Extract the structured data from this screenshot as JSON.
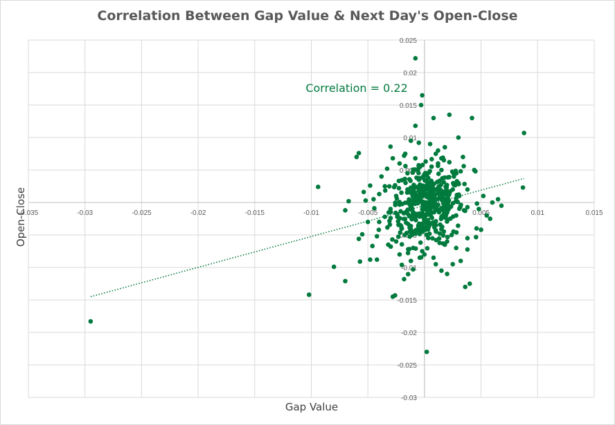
{
  "chart_data": {
    "type": "scatter",
    "title": "Correlation Between Gap Value & Next Day's Open-Close",
    "xlabel": "Gap Value",
    "ylabel": "Open-Close",
    "xlim": [
      -0.035,
      0.015
    ],
    "ylim": [
      -0.03,
      0.025
    ],
    "x_ticks": [
      -0.035,
      -0.03,
      -0.025,
      -0.02,
      -0.015,
      -0.01,
      -0.005,
      0,
      0.005,
      0.01,
      0.015
    ],
    "y_ticks": [
      -0.03,
      -0.025,
      -0.02,
      -0.015,
      -0.01,
      -0.005,
      0,
      0.005,
      0.01,
      0.015,
      0.02,
      0.025
    ],
    "x_tick_labels": [
      "-0.035",
      "-0.03",
      "-0.025",
      "-0.02",
      "-0.015",
      "-0.01",
      "-0.005",
      "0",
      "0.005",
      "0.01",
      "0.015"
    ],
    "y_tick_labels": [
      "-0.03",
      "-0.025",
      "-0.02",
      "-0.015",
      "-0.01",
      "-0.005",
      "0",
      "0.005",
      "0.01",
      "0.015",
      "0.02",
      "0.025"
    ],
    "grid": true,
    "marker_color": "#007a3d",
    "trendline": {
      "style": "dotted",
      "x_start": -0.0295,
      "y_start": -0.0145,
      "x_end": 0.0088,
      "y_end": 0.0037
    },
    "annotation": {
      "text": "Correlation = 0.22",
      "x": -0.0105,
      "y": 0.017
    },
    "points": [
      [
        -0.0295,
        -0.0183
      ],
      [
        -0.0102,
        -0.0142
      ],
      [
        -0.0094,
        0.0024
      ],
      [
        -0.008,
        -0.0099
      ],
      [
        -0.007,
        -0.0121
      ],
      [
        -0.007,
        -0.0012
      ],
      [
        -0.0067,
        0.0002
      ],
      [
        -0.006,
        0.007
      ],
      [
        -0.0058,
        0.0076
      ],
      [
        -0.0058,
        -0.0056
      ],
      [
        -0.0057,
        -0.0091
      ],
      [
        -0.0055,
        -0.0049
      ],
      [
        -0.0052,
        0.0003
      ],
      [
        -0.0048,
        0.0026
      ],
      [
        -0.005,
        -0.003
      ],
      [
        -0.0048,
        -0.0088
      ],
      [
        -0.0046,
        -0.0067
      ],
      [
        -0.0042,
        -0.0088
      ],
      [
        -0.004,
        0.0013
      ],
      [
        -0.0038,
        0.004
      ],
      [
        -0.0035,
        -0.0022
      ],
      [
        -0.0033,
        0.0052
      ],
      [
        -0.003,
        0.0086
      ],
      [
        -0.0028,
        -0.0145
      ],
      [
        -0.0026,
        -0.0143
      ],
      [
        -0.0025,
        -0.006
      ],
      [
        -0.0022,
        0.006
      ],
      [
        -0.002,
        -0.0096
      ],
      [
        -0.0018,
        -0.0118
      ],
      [
        -0.0017,
        0.0075
      ],
      [
        -0.0015,
        0.002
      ],
      [
        -0.0012,
        0.0095
      ],
      [
        -0.001,
        -0.0103
      ],
      [
        -0.0008,
        0.0118
      ],
      [
        -0.0005,
        0.0035
      ],
      [
        -0.0003,
        0.015
      ],
      [
        -0.0008,
        0.0222
      ],
      [
        -0.0002,
        0.0165
      ],
      [
        0.0002,
        -0.023
      ],
      [
        0.0005,
        0.009
      ],
      [
        0.0008,
        0.013
      ],
      [
        0.001,
        -0.0095
      ],
      [
        0.0012,
        0.006
      ],
      [
        0.0015,
        -0.0105
      ],
      [
        0.0018,
        0.0085
      ],
      [
        0.002,
        -0.011
      ],
      [
        0.0022,
        0.0135
      ],
      [
        0.0024,
        -0.005
      ],
      [
        0.0026,
        0.004
      ],
      [
        0.0028,
        -0.002
      ],
      [
        0.003,
        0.01
      ],
      [
        0.0032,
        -0.009
      ],
      [
        0.0034,
        0.007
      ],
      [
        0.0036,
        -0.013
      ],
      [
        0.0038,
        0.002
      ],
      [
        0.004,
        -0.0125
      ],
      [
        0.0042,
        0.013
      ],
      [
        0.0044,
        0.005
      ],
      [
        0.0046,
        -0.004
      ],
      [
        0.0048,
        -0.001
      ],
      [
        0.005,
        -0.0042
      ],
      [
        0.0052,
        0.001
      ],
      [
        0.0055,
        -0.002
      ],
      [
        0.0058,
        -0.0025
      ],
      [
        0.006,
        0.0
      ],
      [
        0.0065,
        0.0005
      ],
      [
        0.0068,
        -0.0005
      ],
      [
        0.0088,
        0.0107
      ],
      [
        0.0087,
        0.0023
      ],
      [
        0.003,
        0.003
      ],
      [
        0.0025,
        -0.0095
      ],
      [
        0.0035,
        -0.0012
      ],
      [
        0.0045,
        0.0048
      ],
      [
        0.0015,
        0.0015
      ],
      [
        0.002,
        -0.006
      ],
      [
        -0.0045,
        0.0005
      ],
      [
        -0.004,
        -0.003
      ],
      [
        -0.0035,
        0.0025
      ],
      [
        -0.003,
        -0.001
      ],
      [
        -0.0025,
        0.001
      ],
      [
        -0.002,
        -0.004
      ],
      [
        -0.0015,
        0.0045
      ],
      [
        -0.001,
        -0.007
      ],
      [
        -0.0005,
        0.0055
      ],
      [
        0.0,
        -0.008
      ],
      [
        0.0005,
        0.003
      ],
      [
        0.001,
        -0.0035
      ],
      [
        0.0015,
        0.005
      ],
      [
        0.002,
        0.0
      ],
      [
        0.0025,
        0.002
      ],
      [
        -0.0042,
        -0.0052
      ],
      [
        -0.0032,
        -0.0065
      ],
      [
        -0.0022,
        -0.008
      ],
      [
        -0.0012,
        -0.009
      ],
      [
        -0.0002,
        -0.0075
      ],
      [
        0.0008,
        -0.0085
      ],
      [
        0.0018,
        -0.0065
      ],
      [
        0.0028,
        -0.007
      ],
      [
        0.0038,
        -0.0055
      ],
      [
        0.001,
        0.0075
      ],
      [
        -0.0028,
        0.0068
      ],
      [
        -0.0018,
        0.0072
      ],
      [
        0.0012,
        0.008
      ],
      [
        0.0022,
        0.0062
      ],
      [
        0.0032,
        0.0048
      ],
      [
        -0.0008,
        -0.0048
      ],
      [
        0.0002,
        0.0042
      ],
      [
        0.0006,
        -0.0022
      ],
      [
        -0.0004,
        0.0018
      ],
      [
        0.0004,
        -0.0012
      ]
    ],
    "cluster": {
      "center": [
        0.0002,
        -0.0005
      ],
      "spread": [
        0.0016,
        0.003
      ],
      "count": 420
    }
  }
}
